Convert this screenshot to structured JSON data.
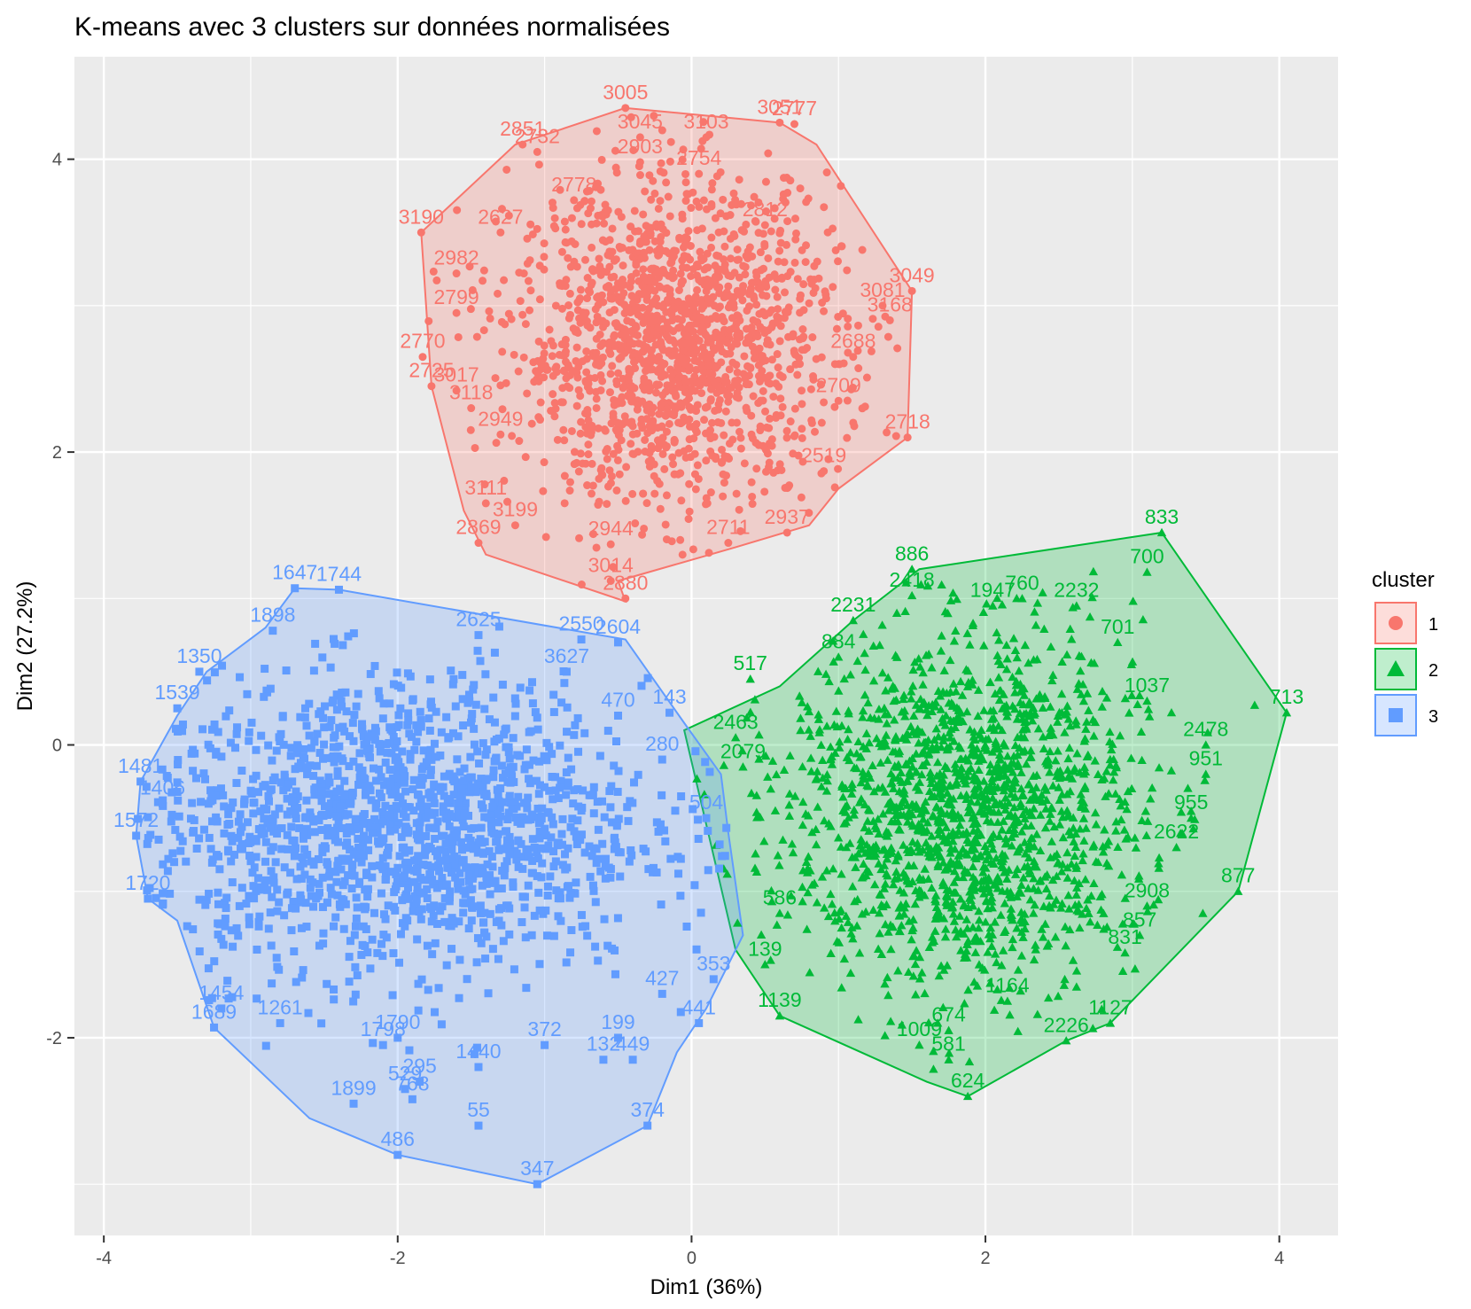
{
  "chart_data": {
    "type": "scatter",
    "title": "K-means avec 3 clusters sur données normalisées",
    "xlabel": "Dim1 (36%)",
    "ylabel": "Dim2 (27.2%)",
    "xlim": [
      -4.2,
      4.4
    ],
    "ylim": [
      -3.35,
      4.7
    ],
    "xticks": [
      -4,
      -2,
      0,
      2,
      4
    ],
    "yticks": [
      -2,
      0,
      2,
      4
    ],
    "xtick_labels": [
      "-4",
      "-2",
      "0",
      "2",
      "4"
    ],
    "ytick_labels": [
      "-2",
      "0",
      "2",
      "4"
    ],
    "grid": true,
    "legend": {
      "title": "cluster",
      "placement": "right",
      "entries": [
        {
          "label": "1",
          "color": "#F8766D",
          "marker": "circle"
        },
        {
          "label": "2",
          "color": "#00BA38",
          "marker": "triangle"
        },
        {
          "label": "3",
          "color": "#619CFF",
          "marker": "square"
        }
      ]
    },
    "colors": {
      "panel": "#EBEBEB",
      "grid": "#FFFFFF",
      "cluster1": "#F8766D",
      "cluster2": "#00BA38",
      "cluster3": "#619CFF"
    },
    "series": [
      {
        "name": "1",
        "marker": "circle",
        "color": "#F8766D",
        "center": [
          -0.1,
          2.75
        ],
        "spread": [
          0.55,
          0.55
        ],
        "hull": [
          [
            -0.45,
            4.35
          ],
          [
            0.6,
            4.25
          ],
          [
            0.85,
            4.1
          ],
          [
            1.5,
            3.1
          ],
          [
            1.47,
            2.1
          ],
          [
            1.0,
            1.75
          ],
          [
            0.8,
            1.5
          ],
          [
            0.3,
            1.35
          ],
          [
            -0.5,
            1.12
          ],
          [
            -0.45,
            0.98
          ],
          [
            -1.4,
            1.3
          ],
          [
            -1.55,
            1.6
          ],
          [
            -1.77,
            2.45
          ],
          [
            -1.84,
            3.5
          ],
          [
            -1.2,
            4.1
          ]
        ],
        "points": [
          {
            "x": -0.45,
            "y": 4.35,
            "label": "3005"
          },
          {
            "x": -0.35,
            "y": 4.15,
            "label": "3045"
          },
          {
            "x": -1.15,
            "y": 4.1,
            "label": "2851"
          },
          {
            "x": -1.05,
            "y": 4.05,
            "label": "2732"
          },
          {
            "x": 0.6,
            "y": 4.25,
            "label": "3051"
          },
          {
            "x": 0.7,
            "y": 4.24,
            "label": "2777"
          },
          {
            "x": 0.1,
            "y": 4.15,
            "label": "3103"
          },
          {
            "x": -0.35,
            "y": 3.98,
            "label": "2903"
          },
          {
            "x": 0.05,
            "y": 3.9,
            "label": "2754"
          },
          {
            "x": -0.8,
            "y": 3.72,
            "label": "2778"
          },
          {
            "x": 0.5,
            "y": 3.55,
            "label": "2812"
          },
          {
            "x": -1.84,
            "y": 3.5,
            "label": "3190"
          },
          {
            "x": -1.6,
            "y": 3.22,
            "label": "2982"
          },
          {
            "x": -1.3,
            "y": 3.5,
            "label": "2627"
          },
          {
            "x": 1.5,
            "y": 3.1,
            "label": "3049"
          },
          {
            "x": 1.3,
            "y": 3.0,
            "label": "3081"
          },
          {
            "x": 1.35,
            "y": 2.9,
            "label": "3168"
          },
          {
            "x": -1.6,
            "y": 2.95,
            "label": "2799"
          },
          {
            "x": 1.1,
            "y": 2.65,
            "label": "2688"
          },
          {
            "x": -1.83,
            "y": 2.65,
            "label": "2770"
          },
          {
            "x": -1.77,
            "y": 2.45,
            "label": "2725"
          },
          {
            "x": -1.6,
            "y": 2.42,
            "label": "3017"
          },
          {
            "x": -1.5,
            "y": 2.3,
            "label": "3118"
          },
          {
            "x": 1.0,
            "y": 2.35,
            "label": "2709"
          },
          {
            "x": 1.47,
            "y": 2.1,
            "label": "2718"
          },
          {
            "x": -1.3,
            "y": 2.12,
            "label": "2949"
          },
          {
            "x": 0.9,
            "y": 1.87,
            "label": "2519"
          },
          {
            "x": -1.4,
            "y": 1.65,
            "label": "3111"
          },
          {
            "x": -1.2,
            "y": 1.5,
            "label": "3199"
          },
          {
            "x": -1.45,
            "y": 1.38,
            "label": "2869"
          },
          {
            "x": 0.65,
            "y": 1.45,
            "label": "2937"
          },
          {
            "x": 0.25,
            "y": 1.38,
            "label": "2711"
          },
          {
            "x": -0.55,
            "y": 1.37,
            "label": "2944"
          },
          {
            "x": -0.55,
            "y": 1.12,
            "label": "3014"
          },
          {
            "x": -0.45,
            "y": 1.0,
            "label": "2880"
          }
        ]
      },
      {
        "name": "2",
        "marker": "triangle",
        "color": "#00BA38",
        "center": [
          1.85,
          -0.45
        ],
        "spread": [
          0.6,
          0.6
        ],
        "hull": [
          [
            3.2,
            1.45
          ],
          [
            4.05,
            0.22
          ],
          [
            3.72,
            -1.0
          ],
          [
            2.85,
            -1.9
          ],
          [
            2.55,
            -2.02
          ],
          [
            1.88,
            -2.4
          ],
          [
            1.6,
            -2.3
          ],
          [
            0.6,
            -1.85
          ],
          [
            0.3,
            -1.4
          ],
          [
            -0.05,
            0.1
          ],
          [
            0.6,
            0.4
          ],
          [
            1.1,
            0.85
          ],
          [
            1.55,
            1.2
          ]
        ],
        "points": [
          {
            "x": 3.2,
            "y": 1.45,
            "label": "833"
          },
          {
            "x": 3.1,
            "y": 1.18,
            "label": "700"
          },
          {
            "x": 1.5,
            "y": 1.2,
            "label": "886"
          },
          {
            "x": 1.5,
            "y": 1.02,
            "label": "2418"
          },
          {
            "x": 2.25,
            "y": 1.0,
            "label": "760"
          },
          {
            "x": 2.62,
            "y": 0.95,
            "label": "2232"
          },
          {
            "x": 2.05,
            "y": 0.95,
            "label": "1947"
          },
          {
            "x": 1.1,
            "y": 0.85,
            "label": "2231"
          },
          {
            "x": 2.9,
            "y": 0.7,
            "label": "701"
          },
          {
            "x": 4.05,
            "y": 0.22,
            "label": "713"
          },
          {
            "x": 3.1,
            "y": 0.3,
            "label": "1037"
          },
          {
            "x": 3.5,
            "y": 0.0,
            "label": "2478"
          },
          {
            "x": 3.5,
            "y": -0.2,
            "label": "951"
          },
          {
            "x": 3.4,
            "y": -0.5,
            "label": "955"
          },
          {
            "x": 3.3,
            "y": -0.7,
            "label": "2622"
          },
          {
            "x": 3.72,
            "y": -1.0,
            "label": "877"
          },
          {
            "x": 3.1,
            "y": -1.1,
            "label": "2908"
          },
          {
            "x": 3.05,
            "y": -1.3,
            "label": "857"
          },
          {
            "x": 2.95,
            "y": -1.42,
            "label": "831"
          },
          {
            "x": 2.85,
            "y": -1.9,
            "label": "1127"
          },
          {
            "x": 2.55,
            "y": -2.02,
            "label": "2226"
          },
          {
            "x": 2.15,
            "y": -1.75,
            "label": "1164"
          },
          {
            "x": 1.75,
            "y": -1.95,
            "label": "674"
          },
          {
            "x": 1.55,
            "y": -2.05,
            "label": "1009"
          },
          {
            "x": 1.75,
            "y": -2.15,
            "label": "581"
          },
          {
            "x": 1.88,
            "y": -2.4,
            "label": "624"
          },
          {
            "x": 0.6,
            "y": -1.85,
            "label": "1139"
          },
          {
            "x": 0.5,
            "y": -1.5,
            "label": "139"
          },
          {
            "x": 0.6,
            "y": -1.15,
            "label": "586"
          },
          {
            "x": 0.4,
            "y": 0.45,
            "label": "517"
          },
          {
            "x": 1.0,
            "y": 0.6,
            "label": "884"
          },
          {
            "x": 0.3,
            "y": 0.05,
            "label": "2463"
          },
          {
            "x": 0.35,
            "y": -0.15,
            "label": "2079"
          }
        ]
      },
      {
        "name": "3",
        "marker": "square",
        "color": "#619CFF",
        "center": [
          -2.0,
          -0.55
        ],
        "spread": [
          0.85,
          0.5
        ],
        "hull": [
          [
            -2.7,
            1.07
          ],
          [
            -2.4,
            1.06
          ],
          [
            -0.45,
            0.72
          ],
          [
            -0.05,
            0.15
          ],
          [
            0.2,
            -0.2
          ],
          [
            0.25,
            -0.6
          ],
          [
            0.35,
            -1.3
          ],
          [
            0.1,
            -1.8
          ],
          [
            -0.1,
            -2.1
          ],
          [
            -0.3,
            -2.6
          ],
          [
            -1.05,
            -3.0
          ],
          [
            -2.0,
            -2.8
          ],
          [
            -2.6,
            -2.55
          ],
          [
            -3.25,
            -1.93
          ],
          [
            -3.5,
            -1.2
          ],
          [
            -3.7,
            -1.05
          ],
          [
            -3.78,
            -0.62
          ],
          [
            -3.75,
            -0.25
          ],
          [
            -3.5,
            0.2
          ],
          [
            -3.3,
            0.5
          ],
          [
            -2.9,
            0.8
          ]
        ],
        "points": [
          {
            "x": -2.7,
            "y": 1.07,
            "label": "1647"
          },
          {
            "x": -2.4,
            "y": 1.06,
            "label": "1744"
          },
          {
            "x": -2.85,
            "y": 0.78,
            "label": "1898"
          },
          {
            "x": -1.45,
            "y": 0.75,
            "label": "2625"
          },
          {
            "x": -0.75,
            "y": 0.72,
            "label": "2550"
          },
          {
            "x": -0.5,
            "y": 0.7,
            "label": "2604"
          },
          {
            "x": -3.35,
            "y": 0.5,
            "label": "1350"
          },
          {
            "x": -0.85,
            "y": 0.5,
            "label": "3627"
          },
          {
            "x": -0.5,
            "y": 0.2,
            "label": "470"
          },
          {
            "x": -0.15,
            "y": 0.22,
            "label": "143"
          },
          {
            "x": -3.5,
            "y": 0.25,
            "label": "1539"
          },
          {
            "x": -3.75,
            "y": -0.25,
            "label": "1481"
          },
          {
            "x": -3.6,
            "y": -0.4,
            "label": "1406"
          },
          {
            "x": -3.78,
            "y": -0.62,
            "label": "1572"
          },
          {
            "x": -3.7,
            "y": -1.05,
            "label": "1720"
          },
          {
            "x": -0.2,
            "y": -0.1,
            "label": "280"
          },
          {
            "x": 0.1,
            "y": -0.5,
            "label": "504"
          },
          {
            "x": -3.2,
            "y": -1.8,
            "label": "1454"
          },
          {
            "x": -3.25,
            "y": -1.93,
            "label": "1689"
          },
          {
            "x": -2.8,
            "y": -1.9,
            "label": "1261"
          },
          {
            "x": -2.1,
            "y": -2.05,
            "label": "1798"
          },
          {
            "x": -2.0,
            "y": -2.0,
            "label": "1790"
          },
          {
            "x": -2.3,
            "y": -2.45,
            "label": "1899"
          },
          {
            "x": -1.95,
            "y": -2.35,
            "label": "529"
          },
          {
            "x": -1.85,
            "y": -2.3,
            "label": "295"
          },
          {
            "x": -1.9,
            "y": -2.42,
            "label": "768"
          },
          {
            "x": -2.0,
            "y": -2.8,
            "label": "486"
          },
          {
            "x": -1.45,
            "y": -2.6,
            "label": "55"
          },
          {
            "x": -1.05,
            "y": -3.0,
            "label": "347"
          },
          {
            "x": -0.3,
            "y": -2.6,
            "label": "374"
          },
          {
            "x": -0.5,
            "y": -2.0,
            "label": "199"
          },
          {
            "x": -0.6,
            "y": -2.15,
            "label": "132"
          },
          {
            "x": -0.4,
            "y": -2.15,
            "label": "449"
          },
          {
            "x": -1.45,
            "y": -2.2,
            "label": "1440"
          },
          {
            "x": 0.05,
            "y": -1.9,
            "label": "441"
          },
          {
            "x": 0.15,
            "y": -1.6,
            "label": "353"
          },
          {
            "x": -0.2,
            "y": -1.7,
            "label": "427"
          },
          {
            "x": -1.0,
            "y": -2.05,
            "label": "372"
          }
        ]
      }
    ]
  }
}
